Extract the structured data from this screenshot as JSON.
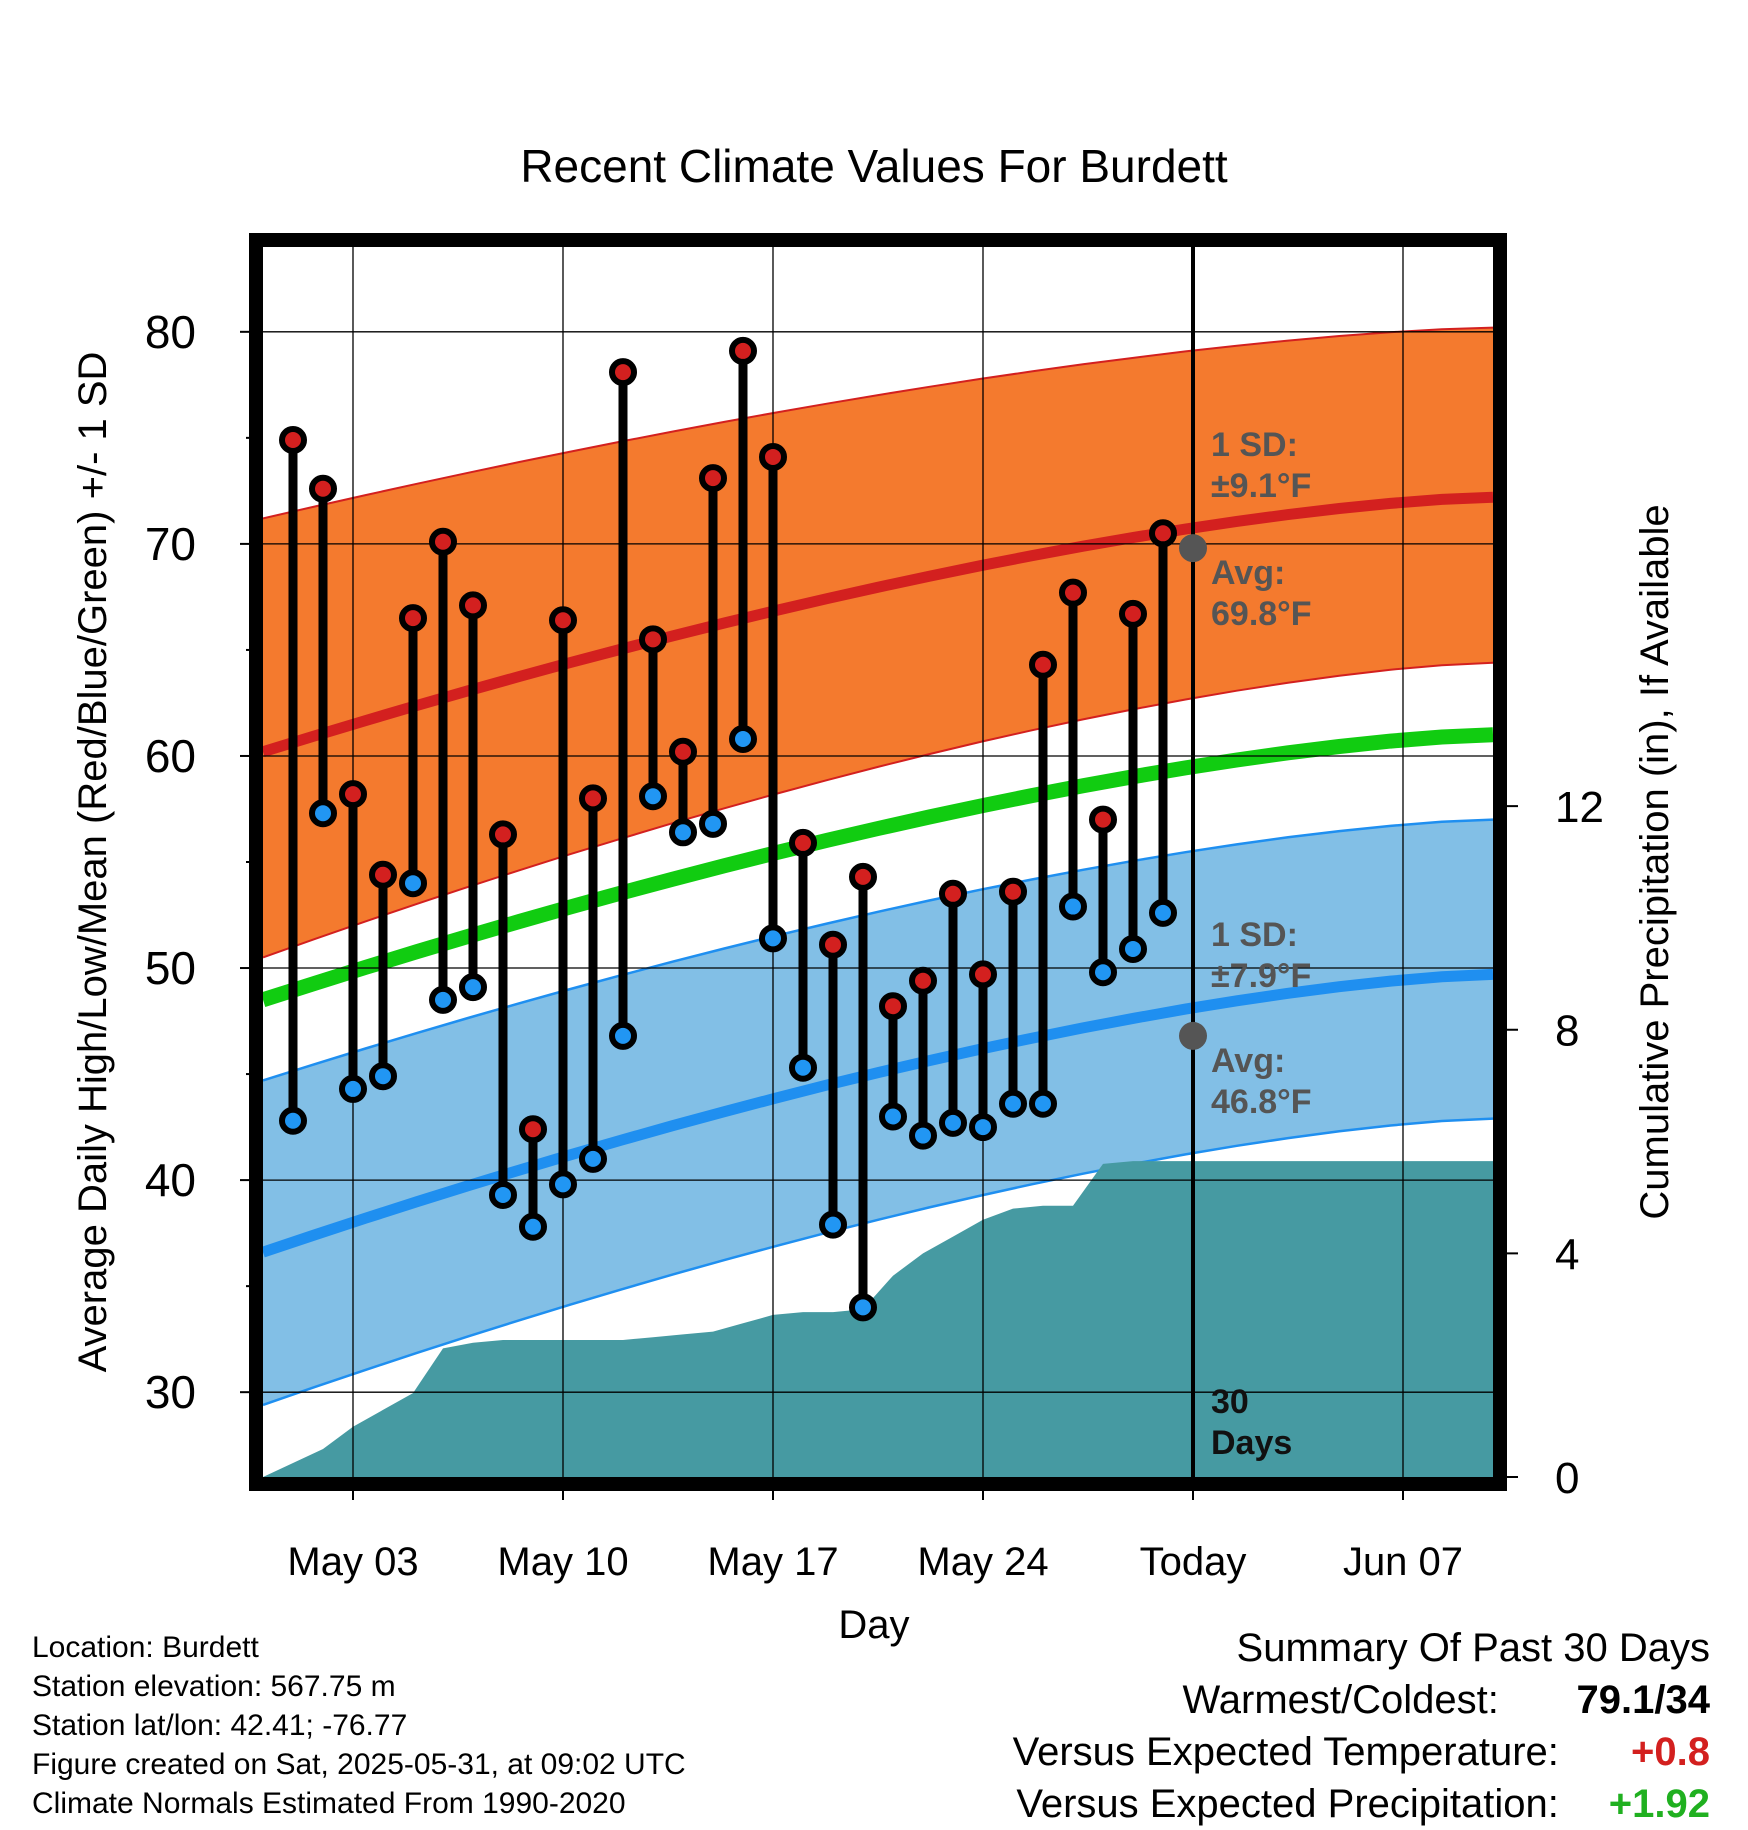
{
  "colors": {
    "high_band": "#f47a2e",
    "high_avg": "#d3201f",
    "low_band": "#82bfe6",
    "low_avg": "#1f8ff0",
    "mean_line": "#11cc11",
    "precip": "#469aa2",
    "high_marker": "#d3201f",
    "low_marker": "#2196f3",
    "positive_temp": "#d3201f",
    "positive_precip": "#20b020"
  },
  "chart_data": {
    "type": "line",
    "title": "Recent Climate Values For Burdett",
    "xlabel": "Day",
    "ylabel": "Average Daily High/Low/Mean (Red/Blue/Green) +/- 1 SD",
    "y2label": "Cumulative Precipitation (in), If Available",
    "x_range": [
      "2025-04-30",
      "2025-06-10"
    ],
    "ylim": [
      26,
      84
    ],
    "y2lim": [
      0,
      22
    ],
    "yticks": [
      30,
      40,
      50,
      60,
      70,
      80
    ],
    "y2ticks": [
      0,
      4,
      8,
      12
    ],
    "xticks": [
      {
        "date": "2025-05-03",
        "label": "May 03"
      },
      {
        "date": "2025-05-10",
        "label": "May 10"
      },
      {
        "date": "2025-05-17",
        "label": "May 17"
      },
      {
        "date": "2025-05-24",
        "label": "May 24"
      },
      {
        "date": "2025-05-31",
        "label": "Today"
      },
      {
        "date": "2025-06-07",
        "label": "Jun 07"
      }
    ],
    "grid": true,
    "today": "2025-05-31",
    "window_label": "30 Days",
    "normals": {
      "x": [
        "2025-04-30",
        "2025-06-10"
      ],
      "high_avg": [
        60.2,
        72.2
      ],
      "high_upper": [
        71.2,
        80.2
      ],
      "high_lower": [
        50.5,
        64.4
      ],
      "mean": [
        48.5,
        61.0
      ],
      "low_avg": [
        36.6,
        49.7
      ],
      "low_upper": [
        44.7,
        57.0
      ],
      "low_lower": [
        29.4,
        42.9
      ]
    },
    "annotations": {
      "high_sd": "1 SD:",
      "high_sd_value": "±9.1°F",
      "high_avg_label": "Avg:",
      "high_avg_value": "69.8°F",
      "low_sd": "1 SD:",
      "low_sd_value": "±7.9°F",
      "low_avg_label": "Avg:",
      "low_avg_value": "46.8°F",
      "high_avg_today": 69.8,
      "low_avg_today": 46.8
    },
    "series": [
      {
        "name": "High",
        "x": [
          "2025-05-01",
          "2025-05-02",
          "2025-05-03",
          "2025-05-04",
          "2025-05-05",
          "2025-05-06",
          "2025-05-07",
          "2025-05-08",
          "2025-05-09",
          "2025-05-10",
          "2025-05-11",
          "2025-05-12",
          "2025-05-13",
          "2025-05-14",
          "2025-05-15",
          "2025-05-16",
          "2025-05-17",
          "2025-05-18",
          "2025-05-19",
          "2025-05-20",
          "2025-05-21",
          "2025-05-22",
          "2025-05-23",
          "2025-05-24",
          "2025-05-25",
          "2025-05-26",
          "2025-05-27",
          "2025-05-28",
          "2025-05-29",
          "2025-05-30"
        ],
        "values": [
          74.9,
          72.6,
          58.2,
          54.4,
          66.5,
          70.1,
          67.1,
          56.3,
          42.4,
          66.4,
          58.0,
          78.1,
          65.5,
          60.2,
          73.1,
          79.1,
          74.1,
          55.9,
          51.1,
          54.3,
          48.2,
          49.4,
          53.5,
          49.7,
          53.6,
          64.3,
          67.7,
          57.0,
          66.7,
          70.5
        ]
      },
      {
        "name": "Low",
        "x": [
          "2025-05-01",
          "2025-05-02",
          "2025-05-03",
          "2025-05-04",
          "2025-05-05",
          "2025-05-06",
          "2025-05-07",
          "2025-05-08",
          "2025-05-09",
          "2025-05-10",
          "2025-05-11",
          "2025-05-12",
          "2025-05-13",
          "2025-05-14",
          "2025-05-15",
          "2025-05-16",
          "2025-05-17",
          "2025-05-18",
          "2025-05-19",
          "2025-05-20",
          "2025-05-21",
          "2025-05-22",
          "2025-05-23",
          "2025-05-24",
          "2025-05-25",
          "2025-05-26",
          "2025-05-27",
          "2025-05-28",
          "2025-05-29",
          "2025-05-30"
        ],
        "values": [
          42.8,
          57.3,
          44.3,
          44.9,
          54.0,
          48.5,
          49.1,
          39.3,
          37.8,
          39.8,
          41.0,
          46.8,
          58.1,
          56.4,
          56.8,
          60.8,
          51.4,
          45.3,
          37.9,
          34.0,
          43.0,
          42.1,
          42.7,
          42.5,
          43.6,
          43.6,
          52.9,
          49.8,
          50.9,
          52.6
        ]
      },
      {
        "name": "Cumulative Precipitation",
        "x": [
          "2025-04-30",
          "2025-05-02",
          "2025-05-03",
          "2025-05-04",
          "2025-05-05",
          "2025-05-06",
          "2025-05-07",
          "2025-05-08",
          "2025-05-10",
          "2025-05-12",
          "2025-05-13",
          "2025-05-14",
          "2025-05-15",
          "2025-05-16",
          "2025-05-17",
          "2025-05-18",
          "2025-05-19",
          "2025-05-20",
          "2025-05-21",
          "2025-05-22",
          "2025-05-23",
          "2025-05-24",
          "2025-05-25",
          "2025-05-26",
          "2025-05-27",
          "2025-05-28",
          "2025-05-29",
          "2025-06-10"
        ],
        "values": [
          0.0,
          0.5,
          0.9,
          1.2,
          1.5,
          2.3,
          2.4,
          2.45,
          2.45,
          2.45,
          2.5,
          2.55,
          2.6,
          2.75,
          2.9,
          2.95,
          2.95,
          3.0,
          3.6,
          4.0,
          4.3,
          4.6,
          4.8,
          4.85,
          4.85,
          5.6,
          5.65,
          5.65
        ]
      }
    ]
  },
  "info": {
    "location": "Location: Burdett",
    "elevation": "Station elevation: 567.75 m",
    "latlon": "Station lat/lon: 42.41; -76.77",
    "created": "Figure created on Sat, 2025-05-31, at 09:02 UTC",
    "normals": "Climate Normals Estimated From 1990-2020"
  },
  "summary": {
    "title": "Summary Of Past 30 Days",
    "warm_cold_label": "Warmest/Coldest:",
    "warm_cold_value": "79.1/34",
    "temp_label": "Versus Expected Temperature:",
    "temp_value": "+0.8",
    "precip_label": "Versus Expected Precipitation:",
    "precip_value": "+1.92"
  }
}
